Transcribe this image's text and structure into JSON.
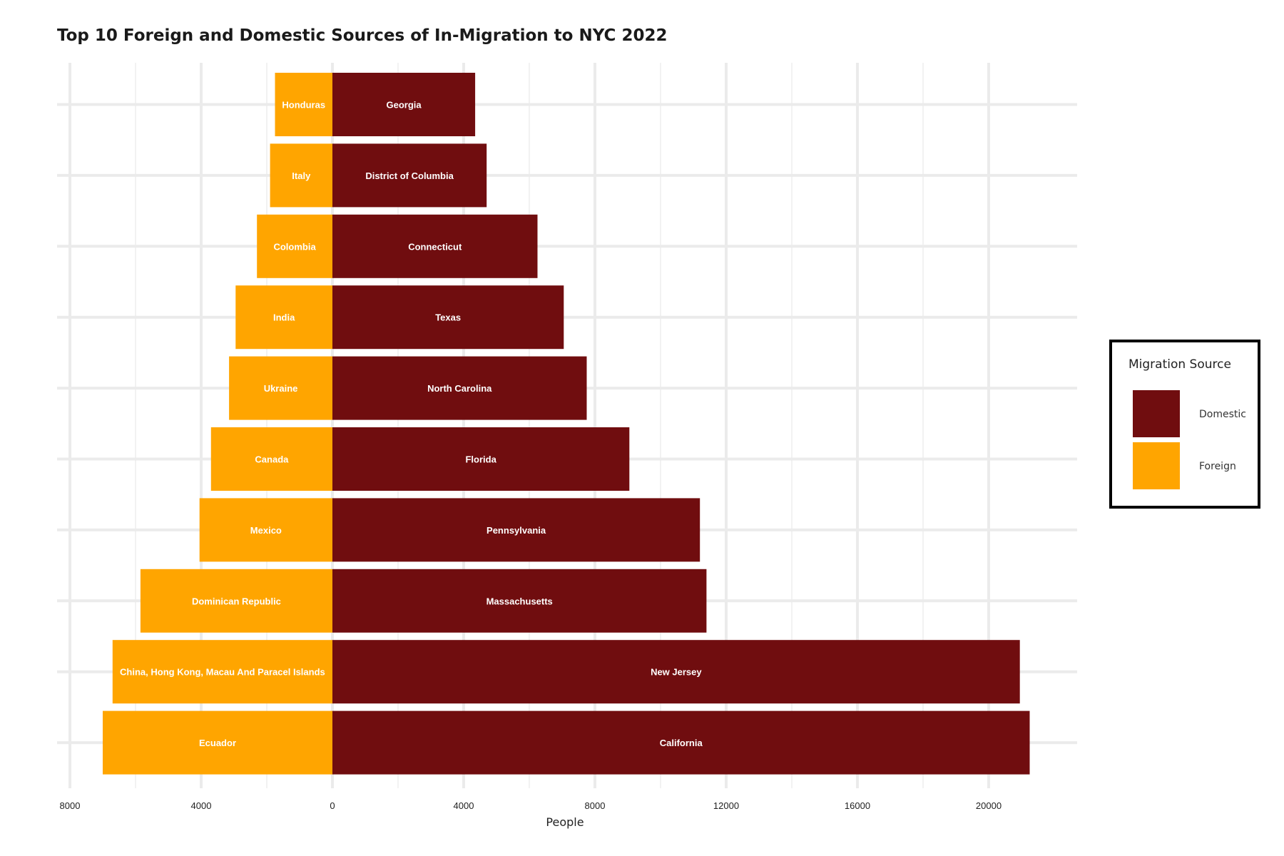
{
  "chart_data": {
    "type": "bar",
    "orientation": "horizontal-diverging",
    "title": "Top 10 Foreign and Domestic Sources of In-Migration to NYC 2022",
    "xlabel": "People",
    "ylabel": "",
    "xlim": [
      -8000,
      22000
    ],
    "x_ticks": [
      -8000,
      -4000,
      0,
      4000,
      8000,
      12000,
      16000,
      20000
    ],
    "x_tick_labels": [
      "8000",
      "4000",
      "0",
      "4000",
      "8000",
      "12000",
      "16000",
      "20000"
    ],
    "grid": true,
    "legend": {
      "title": "Migration Source",
      "position": "right",
      "entries": [
        {
          "name": "Domestic",
          "color": "#700d0f"
        },
        {
          "name": "Foreign",
          "color": "#ffa500"
        }
      ]
    },
    "rows": [
      {
        "foreign_label": "Ecuador",
        "foreign": 7000,
        "domestic_label": "California",
        "domestic": 21250
      },
      {
        "foreign_label": "China, Hong Kong, Macau And Paracel Islands",
        "foreign": 6700,
        "domestic_label": "New Jersey",
        "domestic": 20950
      },
      {
        "foreign_label": "Dominican Republic",
        "foreign": 5850,
        "domestic_label": "Massachusetts",
        "domestic": 11400
      },
      {
        "foreign_label": "Mexico",
        "foreign": 4050,
        "domestic_label": "Pennsylvania",
        "domestic": 11200
      },
      {
        "foreign_label": "Canada",
        "foreign": 3700,
        "domestic_label": "Florida",
        "domestic": 9050
      },
      {
        "foreign_label": "Ukraine",
        "foreign": 3150,
        "domestic_label": "North Carolina",
        "domestic": 7750
      },
      {
        "foreign_label": "India",
        "foreign": 2950,
        "domestic_label": "Texas",
        "domestic": 7050
      },
      {
        "foreign_label": "Colombia",
        "foreign": 2300,
        "domestic_label": "Connecticut",
        "domestic": 6250
      },
      {
        "foreign_label": "Italy",
        "foreign": 1900,
        "domestic_label": "District of Columbia",
        "domestic": 4700
      },
      {
        "foreign_label": "Honduras",
        "foreign": 1750,
        "domestic_label": "Georgia",
        "domestic": 4350
      }
    ]
  }
}
